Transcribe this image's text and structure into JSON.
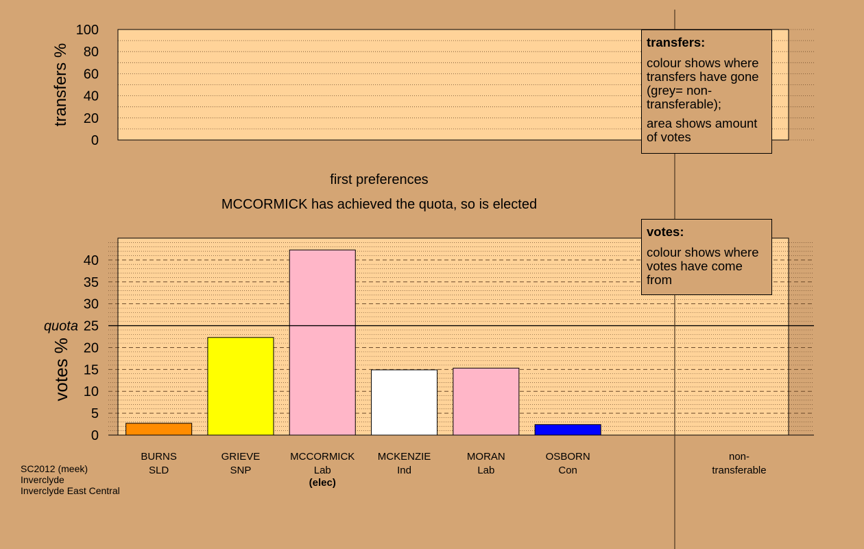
{
  "texts": {
    "stage": "first preferences",
    "status": "MCCORMICK has achieved the quota, so is elected",
    "transfers_ylabel": "transfers %",
    "votes_ylabel": "votes %",
    "quota_label": "quota",
    "nontransferable_line1": "non-",
    "nontransferable_line2": "transferable"
  },
  "legends": {
    "transfers": {
      "title": "transfers:",
      "para1": "colour shows where transfers have gone (grey= non-transferable);",
      "para2": "area shows amount of votes"
    },
    "votes": {
      "title": "votes:",
      "para1": "colour shows where votes have come from"
    }
  },
  "footer": {
    "line1": "SC2012 (meek)",
    "line2": "Inverclyde",
    "line3": "Inverclyde East Central"
  },
  "chart_data": [
    {
      "type": "bar",
      "panel": "transfers",
      "ylabel": "transfers %",
      "ylim": [
        0,
        100
      ],
      "yticks": [
        0,
        20,
        40,
        60,
        80,
        100
      ],
      "values": []
    },
    {
      "type": "bar",
      "panel": "votes",
      "ylabel": "votes %",
      "ylim": [
        0,
        45
      ],
      "yticks": [
        0,
        5,
        10,
        15,
        20,
        25,
        30,
        35,
        40
      ],
      "quota": 25,
      "bars": [
        {
          "name": "BURNS",
          "party": "SLD",
          "value": 2.7,
          "color": "#ff8c00"
        },
        {
          "name": "GRIEVE",
          "party": "SNP",
          "value": 22.3,
          "color": "#ffff00"
        },
        {
          "name": "MCCORMICK",
          "party": "Lab",
          "note": "(elec)",
          "value": 42.3,
          "color": "#ffb6c8"
        },
        {
          "name": "MCKENZIE",
          "party": "Ind",
          "value": 14.9,
          "color": "#ffffff"
        },
        {
          "name": "MORAN",
          "party": "Lab",
          "value": 15.3,
          "color": "#ffb6c8"
        },
        {
          "name": "OSBORN",
          "party": "Con",
          "value": 2.4,
          "color": "#0000ff"
        }
      ],
      "nontransferable": 0
    }
  ]
}
